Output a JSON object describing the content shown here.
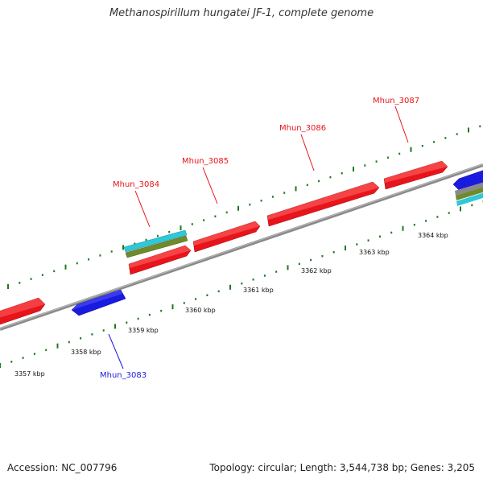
{
  "title": "Methanospirillum hungatei JF-1, complete genome",
  "footer": {
    "accession": "Accession: NC_007796",
    "summary": "Topology: circular; Length: 3,544,738 bp; Genes: 3,205"
  },
  "colors": {
    "forward_gene": "#e8141b",
    "reverse_gene": "#1a1ae0",
    "backbone": "#8a8a8a",
    "tick_marks": "#1e7a1e",
    "cyan_feature": "#2ec8d8",
    "olive_feature": "#6f8a2a"
  },
  "scale": {
    "unit": "kbp",
    "labels": [
      "3357 kbp",
      "3358 kbp",
      "3359 kbp",
      "3360 kbp",
      "3361 kbp",
      "3362 kbp",
      "3363 kbp",
      "3364 kbp"
    ]
  },
  "genes": [
    {
      "name": "Mhun_3083",
      "strand": "reverse"
    },
    {
      "name": "Mhun_3084",
      "strand": "forward"
    },
    {
      "name": "Mhun_3085",
      "strand": "forward"
    },
    {
      "name": "Mhun_3086",
      "strand": "forward"
    },
    {
      "name": "Mhun_3087",
      "strand": "forward"
    }
  ]
}
